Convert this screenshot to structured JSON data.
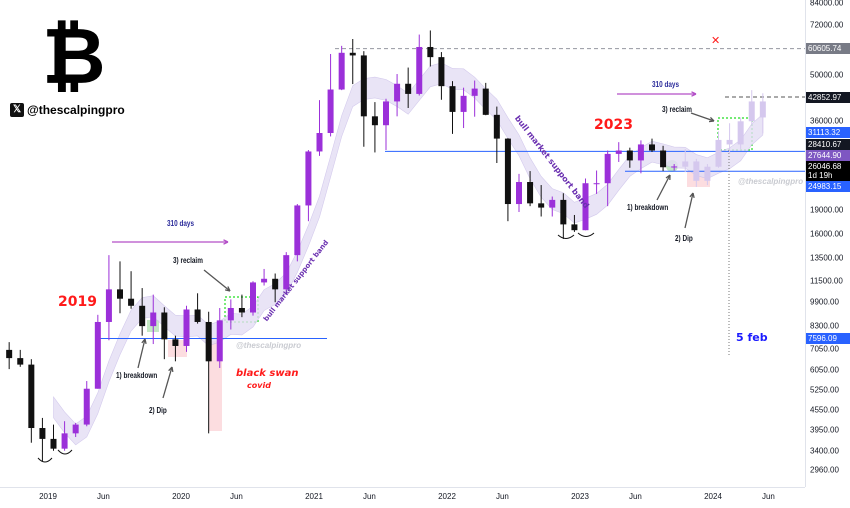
{
  "header": {
    "logo_glyph": "₿",
    "x_glyph": "𝕏",
    "handle": "@thescalpingpro"
  },
  "colors": {
    "up": "#9b30d9",
    "down": "#111111",
    "projection": "#d5c8ee",
    "band": "#e4def5",
    "line_blue": "#2962ff",
    "red": "#ff1a1a",
    "arrow": "#b34fc7"
  },
  "chart_data": {
    "type": "candlestick",
    "scale": "log",
    "ylim": [
      2700,
      84000
    ],
    "y_ticks": [
      "84000.00",
      "72000.00",
      "50000.00",
      "36000.00",
      "19000.00",
      "16000.00",
      "13500.00",
      "11500.00",
      "9900.00",
      "8300.00",
      "7050.00",
      "6050.00",
      "5250.00",
      "4550.00",
      "3950.00",
      "3400.00",
      "2960.00"
    ],
    "y_tick_values": [
      84000,
      72000,
      50000,
      36000,
      19000,
      16000,
      13500,
      11500,
      9900,
      8300,
      7050,
      6050,
      5250,
      4550,
      3950,
      3400,
      2960
    ],
    "x_ticks": [
      "2019",
      "Jun",
      "2020",
      "Jun",
      "2021",
      "Jun",
      "2022",
      "Jun",
      "2023",
      "Jun",
      "2024",
      "Jun"
    ],
    "x_tick_dates": [
      "2019-01",
      "2019-06",
      "2020-01",
      "2020-06",
      "2021-01",
      "2021-06",
      "2022-01",
      "2022-06",
      "2023-01",
      "2023-06",
      "2024-01",
      "2024-06"
    ],
    "candles": [
      [
        "2018-09",
        7000,
        7400,
        6100,
        6600
      ],
      [
        "2018-10",
        6600,
        7000,
        6200,
        6300
      ],
      [
        "2018-11",
        6300,
        6550,
        3600,
        4000
      ],
      [
        "2018-12",
        4000,
        4300,
        3150,
        3700
      ],
      [
        "2019-01",
        3700,
        4100,
        3400,
        3450
      ],
      [
        "2019-02",
        3450,
        4200,
        3400,
        3850
      ],
      [
        "2019-03",
        3850,
        4150,
        3750,
        4100
      ],
      [
        "2019-04",
        4100,
        5600,
        4050,
        5300
      ],
      [
        "2019-05",
        5300,
        9000,
        5300,
        8550
      ],
      [
        "2019-06",
        8550,
        13800,
        7500,
        10800
      ],
      [
        "2019-07",
        10800,
        13200,
        9100,
        10100
      ],
      [
        "2019-08",
        10100,
        12300,
        9400,
        9600
      ],
      [
        "2019-09",
        9600,
        10900,
        7750,
        8300
      ],
      [
        "2019-10",
        8300,
        10400,
        7300,
        9150
      ],
      [
        "2019-11",
        9150,
        9500,
        6550,
        7550
      ],
      [
        "2019-12",
        7550,
        7750,
        6450,
        7200
      ],
      [
        "2020-01",
        7200,
        9600,
        6900,
        9350
      ],
      [
        "2020-02",
        9350,
        10500,
        8450,
        8550
      ],
      [
        "2020-03",
        8550,
        9200,
        3850,
        6450
      ],
      [
        "2020-04",
        6450,
        9450,
        6150,
        8650
      ],
      [
        "2020-05",
        8650,
        10050,
        8100,
        9450
      ],
      [
        "2020-06",
        9450,
        10400,
        8850,
        9150
      ],
      [
        "2020-07",
        9150,
        11450,
        8950,
        11350
      ],
      [
        "2020-08",
        11350,
        12500,
        11100,
        11650
      ],
      [
        "2020-09",
        11650,
        12100,
        9850,
        10800
      ],
      [
        "2020-10",
        10800,
        14100,
        10400,
        13800
      ],
      [
        "2020-11",
        13800,
        19900,
        13200,
        19700
      ],
      [
        "2020-12",
        19700,
        29300,
        17600,
        29000
      ],
      [
        "2021-01",
        29000,
        41900,
        28100,
        33100
      ],
      [
        "2021-02",
        33100,
        58300,
        32300,
        45200
      ],
      [
        "2021-03",
        45200,
        61800,
        45000,
        58800
      ],
      [
        "2021-04",
        58800,
        64900,
        47000,
        57700
      ],
      [
        "2021-05",
        57700,
        59500,
        30000,
        37300
      ],
      [
        "2021-06",
        37300,
        41300,
        28800,
        35000
      ],
      [
        "2021-07",
        35000,
        42300,
        29300,
        41500
      ],
      [
        "2021-08",
        41500,
        50500,
        37300,
        47100
      ],
      [
        "2021-09",
        47100,
        52900,
        39600,
        43800
      ],
      [
        "2021-10",
        43800,
        67000,
        43300,
        61300
      ],
      [
        "2021-11",
        61300,
        69000,
        53300,
        57000
      ],
      [
        "2021-12",
        57000,
        59100,
        42000,
        46300
      ],
      [
        "2022-01",
        46300,
        48000,
        32900,
        38500
      ],
      [
        "2022-02",
        38500,
        45800,
        34300,
        43200
      ],
      [
        "2022-03",
        43200,
        48200,
        37200,
        45500
      ],
      [
        "2022-04",
        45500,
        47400,
        37600,
        37700
      ],
      [
        "2022-05",
        37700,
        40000,
        26700,
        31800
      ],
      [
        "2022-06",
        31800,
        31900,
        17600,
        19900
      ],
      [
        "2022-07",
        19900,
        24700,
        18800,
        23300
      ],
      [
        "2022-08",
        23300,
        25200,
        19600,
        20000
      ],
      [
        "2022-09",
        20000,
        22800,
        18200,
        19400
      ],
      [
        "2022-10",
        19400,
        21000,
        18200,
        20500
      ],
      [
        "2022-11",
        20500,
        21500,
        15500,
        17200
      ],
      [
        "2022-12",
        17200,
        18400,
        16300,
        16500
      ],
      [
        "2023-01",
        16500,
        23900,
        16500,
        23100
      ],
      [
        "2023-02",
        23100,
        25300,
        21400,
        23100
      ],
      [
        "2023-03",
        23100,
        29200,
        19600,
        28500
      ],
      [
        "2023-04",
        28500,
        31000,
        26900,
        29200
      ],
      [
        "2023-05",
        29200,
        29800,
        25800,
        27200
      ],
      [
        "2023-06",
        27200,
        31400,
        24800,
        30500
      ],
      [
        "2023-07",
        30500,
        31800,
        28900,
        29200
      ],
      [
        "2023-08",
        29200,
        30200,
        25200,
        25900
      ],
      [
        "2023-09",
        25900,
        26500,
        25300,
        26046.68
      ]
    ],
    "projection": [
      [
        "2023-10",
        26000,
        29500,
        25000,
        27000
      ],
      [
        "2023-11",
        27000,
        27500,
        22500,
        23500
      ],
      [
        "2023-12",
        23500,
        26500,
        22800,
        26000
      ],
      [
        "2024-01",
        26000,
        33500,
        25800,
        31500
      ],
      [
        "2024-02",
        31500,
        35500,
        28500,
        30500
      ],
      [
        "2024-03",
        30500,
        37000,
        29500,
        36000
      ],
      [
        "2024-04",
        36000,
        45000,
        35000,
        41500
      ],
      [
        "2024-05",
        41500,
        44000,
        33000,
        37000
      ]
    ],
    "price_badges": [
      {
        "label": "60605.74",
        "color": "#787b86"
      },
      {
        "label": "42852.97",
        "color": "#131722"
      },
      {
        "label": "31113.32",
        "color": "#2962ff"
      },
      {
        "label": "28410.67",
        "color": "#131722"
      },
      {
        "label": "27644.90",
        "color": "#7e57c2"
      },
      {
        "label": "26046.68",
        "sub": "1d 19h",
        "color": "#000000"
      },
      {
        "label": "24983.15",
        "color": "#2962ff"
      },
      {
        "label": "7596.09",
        "color": "#2962ff"
      }
    ],
    "levels": {
      "ath_line": 60605.74,
      "target_line": 42852.97,
      "resistance_2023": 28410.67,
      "support_2023": 24983.15,
      "support_2019": 7596.09
    },
    "annotations": {
      "year_2019": "2019",
      "year_2023": "2023",
      "days_left": "310 days",
      "days_right": "310 days",
      "reclaim_left": "3) reclaim",
      "reclaim_right": "3) reclaim",
      "breakdown_left": "1) breakdown",
      "breakdown_right": "1) breakdown",
      "dip_left": "2) Dip",
      "dip_right": "2) Dip",
      "black_swan": "black swan",
      "covid": "covid",
      "band_left": "bull market support band",
      "band_right": "bull market support band",
      "watermark": "@thescalpingpro",
      "date_marker": "5 feb",
      "cross_mark": "✕"
    }
  }
}
